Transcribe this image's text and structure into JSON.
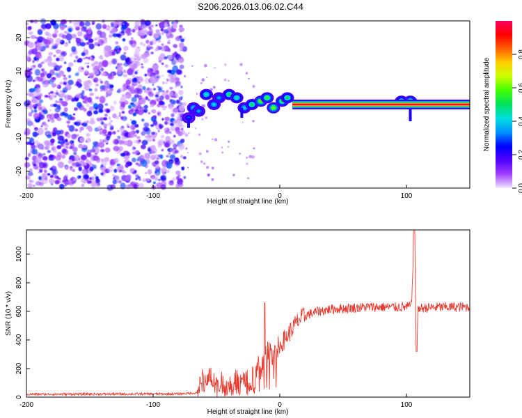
{
  "title": "S206.2026.013.06.02.C44",
  "chart_data": [
    {
      "type": "heatmap",
      "xlabel": "Height of straight line (km)",
      "ylabel": "Frequency (Hz)",
      "xlim": [
        -200,
        150
      ],
      "ylim": [
        -25,
        25
      ],
      "xticks": [
        -200,
        -100,
        0,
        100
      ],
      "yticks": [
        -20,
        -10,
        0,
        10,
        20
      ],
      "grid": false,
      "noise_region_x": [
        -200,
        -75
      ],
      "signal_line": {
        "x_start": 10,
        "x_end": 150,
        "frequency": 0,
        "amplitude": 1.0
      },
      "blobs": [
        {
          "x": -72,
          "y": -4,
          "amplitude": 0.3
        },
        {
          "x": -68,
          "y": -1,
          "amplitude": 0.4
        },
        {
          "x": -64,
          "y": -2,
          "amplitude": 0.35
        },
        {
          "x": -58,
          "y": 3,
          "amplitude": 0.45
        },
        {
          "x": -52,
          "y": 0,
          "amplitude": 0.4
        },
        {
          "x": -48,
          "y": 2,
          "amplitude": 0.35
        },
        {
          "x": -40,
          "y": 3,
          "amplitude": 0.5
        },
        {
          "x": -34,
          "y": 2,
          "amplitude": 0.45
        },
        {
          "x": -28,
          "y": -1,
          "amplitude": 0.4
        },
        {
          "x": -22,
          "y": 0,
          "amplitude": 0.5
        },
        {
          "x": -15,
          "y": 1,
          "amplitude": 0.6
        },
        {
          "x": -10,
          "y": 2,
          "amplitude": 0.55
        },
        {
          "x": -5,
          "y": -1,
          "amplitude": 0.6
        },
        {
          "x": 2,
          "y": 1,
          "amplitude": 0.55
        },
        {
          "x": 6,
          "y": 2,
          "amplitude": 0.5
        },
        {
          "x": 96,
          "y": 1,
          "amplitude": 0.5
        },
        {
          "x": 103,
          "y": 1,
          "amplitude": 0.55
        }
      ],
      "colorbar": {
        "label": "Normalized spectral amplitude",
        "range": [
          0,
          1
        ],
        "ticks": [
          0.0,
          0.2,
          0.4,
          0.6,
          0.8
        ],
        "tick_labels": [
          "0.0",
          "0.2",
          "0.4",
          "0.6",
          "0.8"
        ],
        "colors": [
          "#f0e6ff",
          "#a040ff",
          "#5000ff",
          "#0000ff",
          "#0090ff",
          "#00e0e0",
          "#00e060",
          "#40ff00",
          "#c8ff00",
          "#ffd000",
          "#ff6000",
          "#ff0000",
          "#ff0060"
        ]
      }
    },
    {
      "type": "line",
      "xlabel": "Height of straight line (km)",
      "ylabel": "SNR (10 * v/v)",
      "xlim": [
        -200,
        150
      ],
      "ylim": [
        0,
        1170
      ],
      "xticks": [
        -200,
        -100,
        0,
        100
      ],
      "yticks": [
        0,
        200,
        400,
        600,
        800,
        1000
      ],
      "grid": false,
      "color": "#e8392e",
      "series": [
        {
          "name": "SNR",
          "x": [
            -200,
            -80,
            -65,
            -60,
            -55,
            -50,
            -40,
            -30,
            -20,
            -15,
            -10,
            -5,
            0,
            5,
            10,
            15,
            20,
            30,
            40,
            50,
            60,
            70,
            80,
            90,
            100,
            104,
            106,
            108,
            109,
            110,
            115,
            130,
            150
          ],
          "y": [
            20,
            22,
            30,
            130,
            150,
            80,
            100,
            110,
            130,
            250,
            300,
            330,
            360,
            420,
            480,
            540,
            570,
            600,
            615,
            620,
            625,
            630,
            630,
            630,
            630,
            640,
            1170,
            330,
            600,
            620,
            625,
            630,
            630
          ]
        }
      ],
      "annotations": [
        {
          "x": -12,
          "y": 660,
          "text": ""
        },
        {
          "x": 108,
          "y": 1170,
          "text": ""
        }
      ]
    }
  ]
}
